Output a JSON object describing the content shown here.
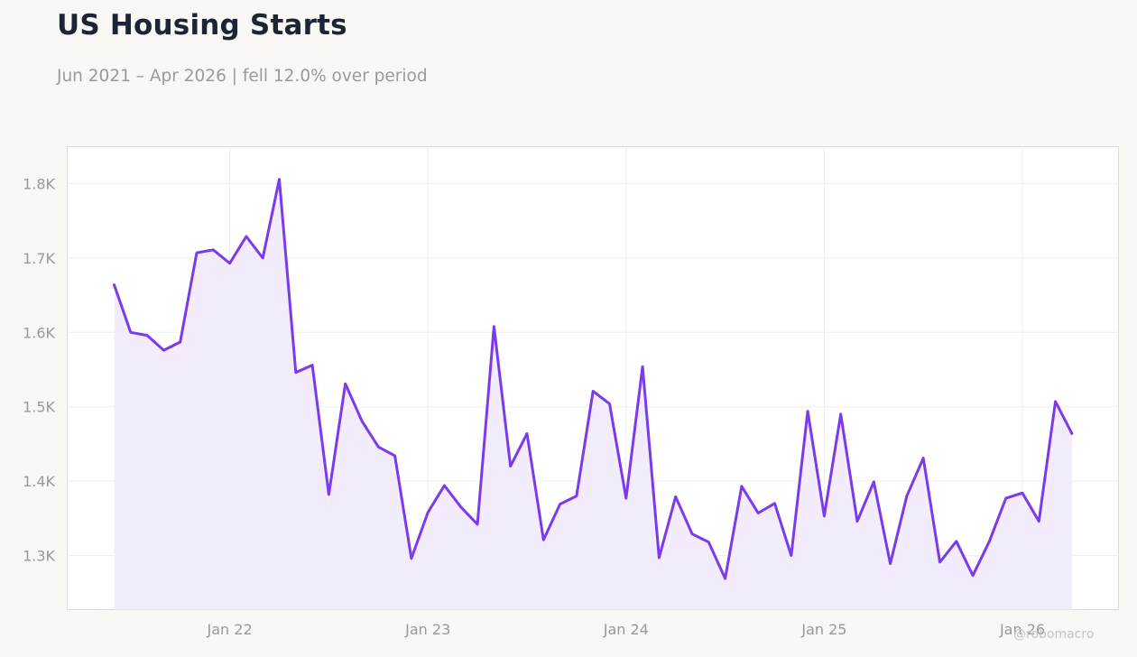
{
  "header": {
    "title": "US Housing Starts",
    "subtitle": "Jun 2021 – Apr 2026 | fell 12.0% over period"
  },
  "watermark": "@robomacro",
  "colors": {
    "line": "#7c3aed",
    "fill": "#f2ecfc",
    "grid": "#eeeeee",
    "plot_bg": "#ffffff",
    "axis_text": "#999999"
  },
  "chart_data": {
    "type": "area",
    "x_start": "2021-06",
    "x_end": "2026-04",
    "x_tick_labels": [
      "Jan 22",
      "Jan 23",
      "Jan 24",
      "Jan 25",
      "Jan 26"
    ],
    "x_tick_dates": [
      "2022-01",
      "2023-01",
      "2024-01",
      "2025-01",
      "2026-01"
    ],
    "y_tick_labels": [
      "1.3K",
      "1.4K",
      "1.5K",
      "1.6K",
      "1.7K",
      "1.8K"
    ],
    "y_tick_values": [
      1300,
      1400,
      1500,
      1600,
      1700,
      1800
    ],
    "ylim": [
      1228,
      1850
    ],
    "grid": true,
    "legend": "none",
    "series": [
      {
        "values": [
          1664,
          1600,
          1596,
          1576,
          1587,
          1707,
          1711,
          1693,
          1729,
          1700,
          1806,
          1546,
          1556,
          1382,
          1531,
          1481,
          1446,
          1434,
          1296,
          1358,
          1394,
          1365,
          1342,
          1608,
          1420,
          1464,
          1321,
          1369,
          1380,
          1521,
          1504,
          1377,
          1554,
          1297,
          1379,
          1329,
          1318,
          1269,
          1393,
          1357,
          1370,
          1300,
          1494,
          1353,
          1490,
          1346,
          1399,
          1289,
          1380,
          1431,
          1291,
          1319,
          1273,
          1319,
          1377,
          1384,
          1346,
          1507,
          1464
        ]
      }
    ]
  }
}
